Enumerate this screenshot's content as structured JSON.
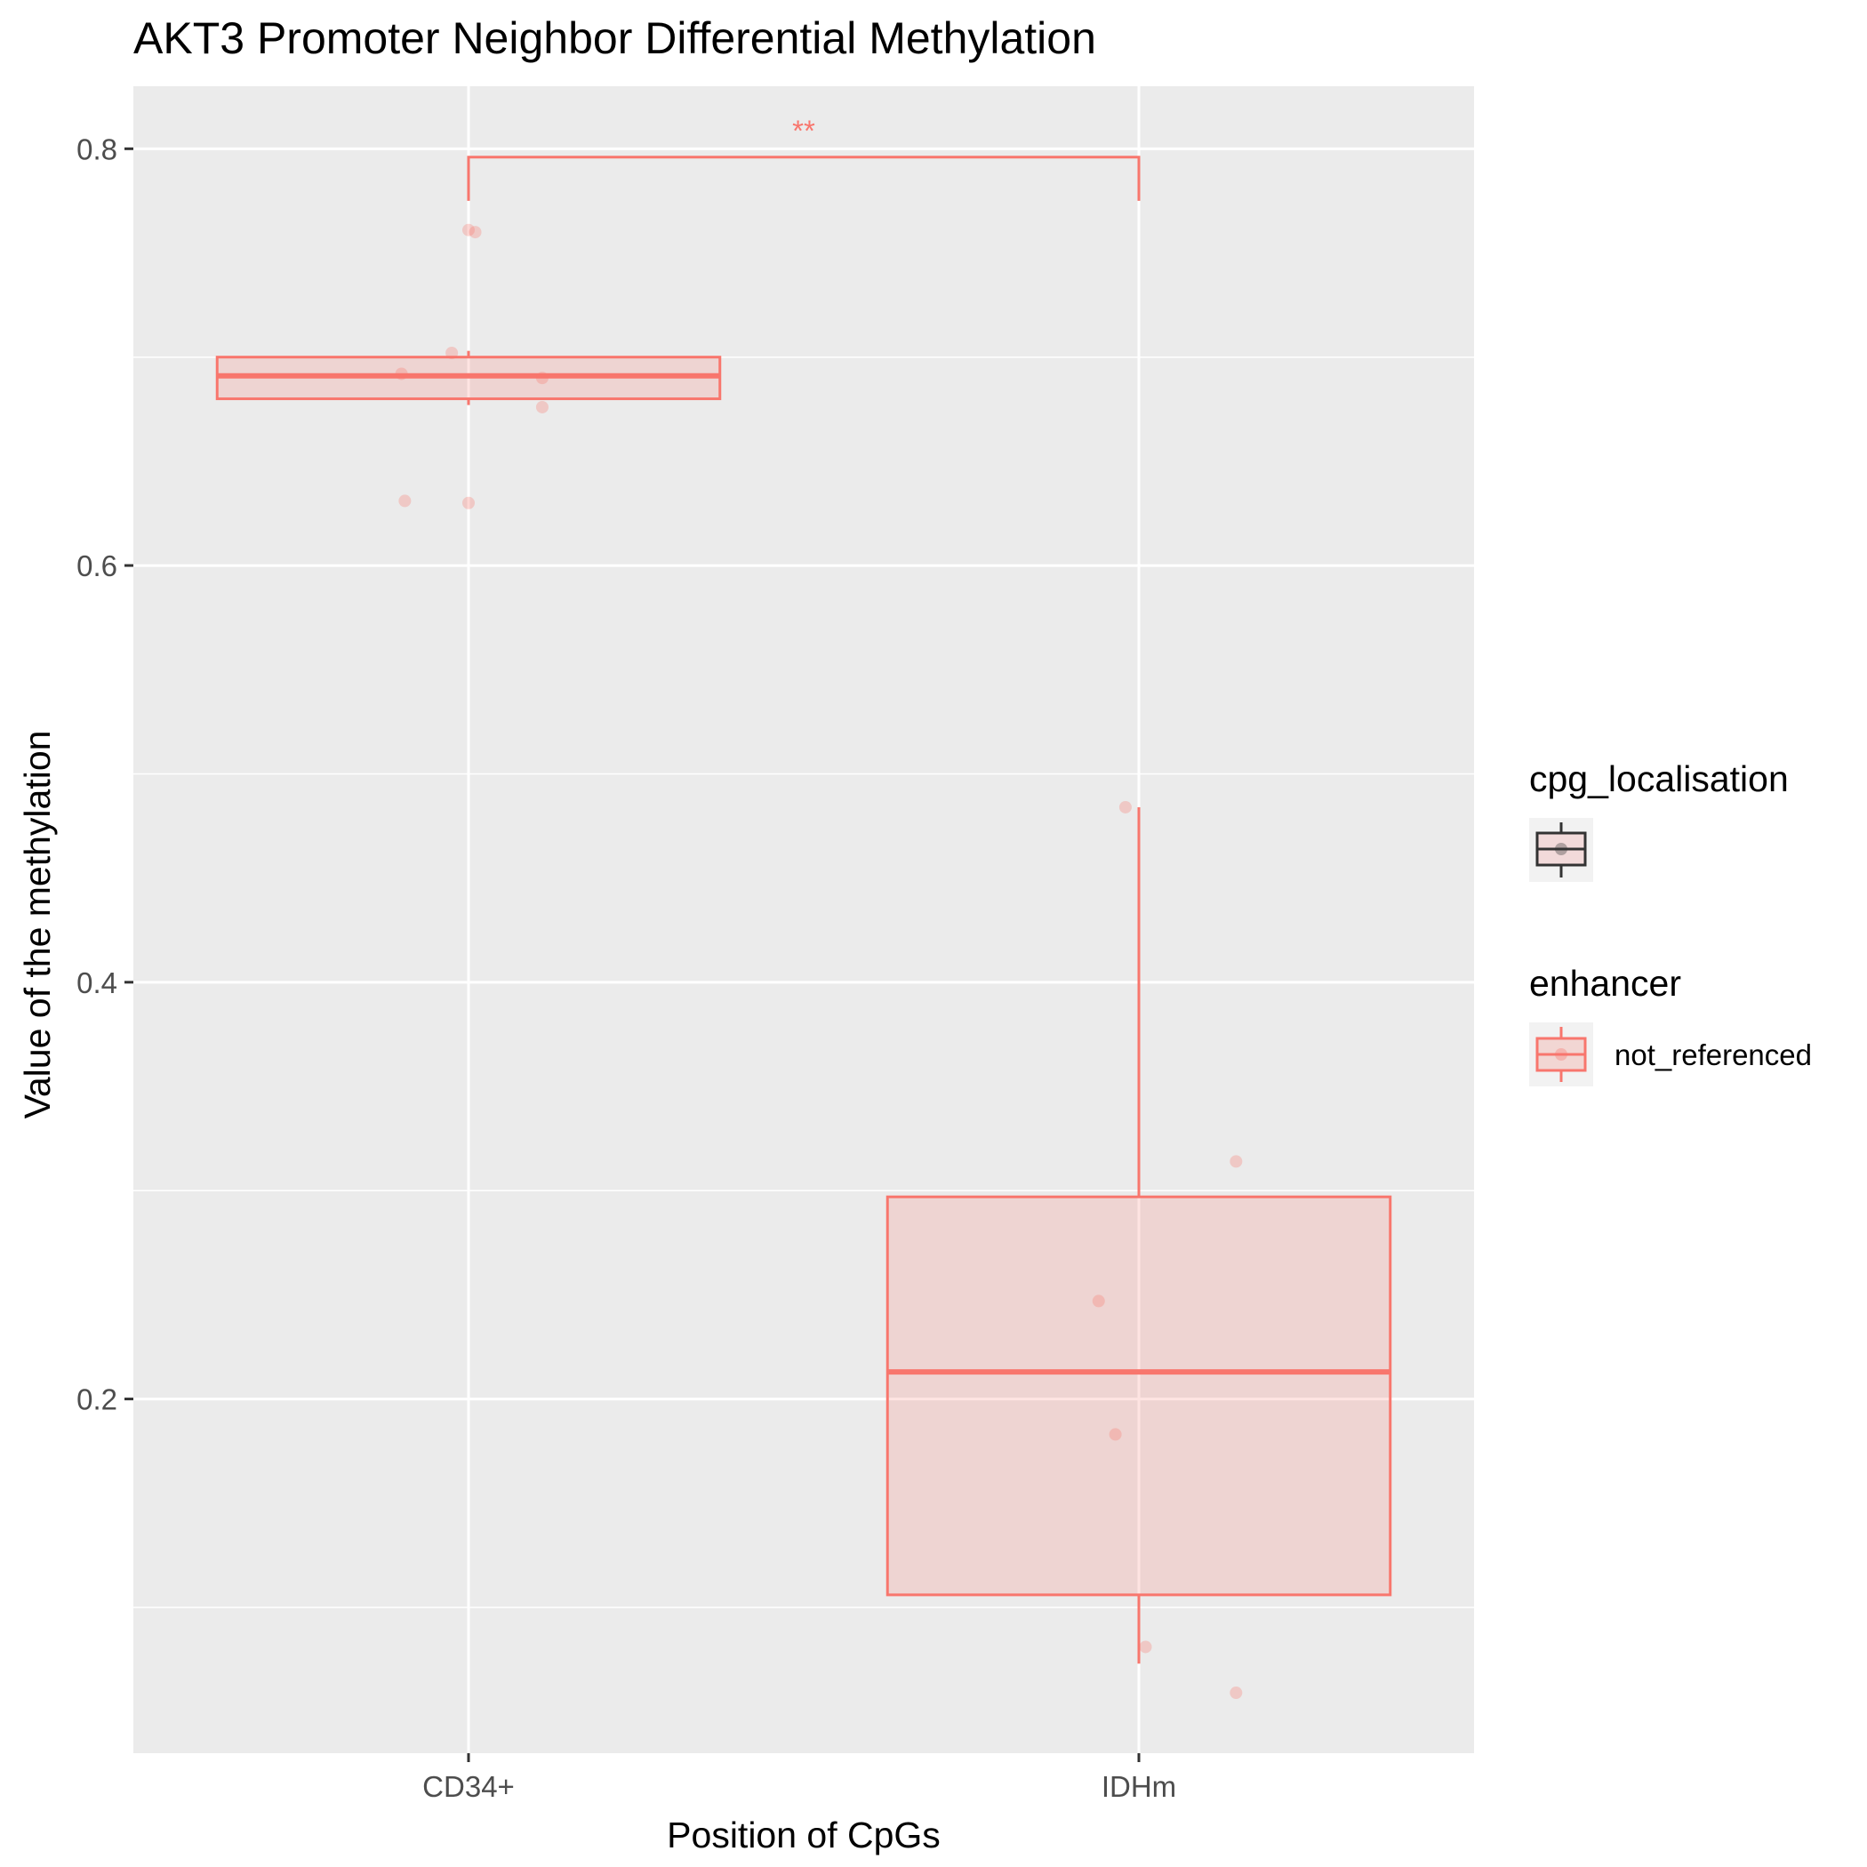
{
  "chart_data": {
    "type": "box",
    "title": "AKT3 Promoter Neighbor Differential Methylation",
    "xlabel": "Position of CpGs",
    "ylabel": "Value of the methylation",
    "categories": [
      "CD34+",
      "IDHm"
    ],
    "ylim": [
      0.03,
      0.83
    ],
    "yticks": [
      0.2,
      0.4,
      0.6,
      0.8
    ],
    "ytick_labels": [
      "0.2",
      "0.4",
      "0.6",
      "0.8"
    ],
    "grid": true,
    "series": [
      {
        "name": "not_referenced",
        "color": "#F8766D",
        "boxes": [
          {
            "category": "CD34+",
            "whisker_low": 0.677,
            "q1": 0.68,
            "median": 0.691,
            "q3": 0.7,
            "whisker_high": 0.703
          },
          {
            "category": "IDHm",
            "whisker_low": 0.073,
            "q1": 0.106,
            "median": 0.213,
            "q3": 0.297,
            "whisker_high": 0.484
          }
        ],
        "points": [
          {
            "category": "CD34+",
            "jitter": 0.0,
            "value": 0.761
          },
          {
            "category": "CD34+",
            "jitter": 0.02,
            "value": 0.76
          },
          {
            "category": "CD34+",
            "jitter": -0.05,
            "value": 0.702
          },
          {
            "category": "CD34+",
            "jitter": -0.2,
            "value": 0.692
          },
          {
            "category": "CD34+",
            "jitter": 0.22,
            "value": 0.69
          },
          {
            "category": "CD34+",
            "jitter": 0.22,
            "value": 0.676
          },
          {
            "category": "CD34+",
            "jitter": -0.19,
            "value": 0.631
          },
          {
            "category": "CD34+",
            "jitter": 0.0,
            "value": 0.63
          },
          {
            "category": "IDHm",
            "jitter": -0.04,
            "value": 0.484
          },
          {
            "category": "IDHm",
            "jitter": 0.29,
            "value": 0.314
          },
          {
            "category": "IDHm",
            "jitter": -0.12,
            "value": 0.247
          },
          {
            "category": "IDHm",
            "jitter": -0.07,
            "value": 0.183
          },
          {
            "category": "IDHm",
            "jitter": 0.02,
            "value": 0.081
          },
          {
            "category": "IDHm",
            "jitter": 0.29,
            "value": 0.059
          }
        ]
      }
    ],
    "significance": {
      "from": "CD34+",
      "to": "IDHm",
      "label": "**",
      "y": 0.796,
      "left_tip": 0.775,
      "right_tip": 0.775
    },
    "legends": [
      {
        "title": "cpg_localisation",
        "color": "#333333",
        "entries": [
          ""
        ]
      },
      {
        "title": "enhancer",
        "color": "#F8766D",
        "entries": [
          "not_referenced"
        ]
      }
    ]
  }
}
